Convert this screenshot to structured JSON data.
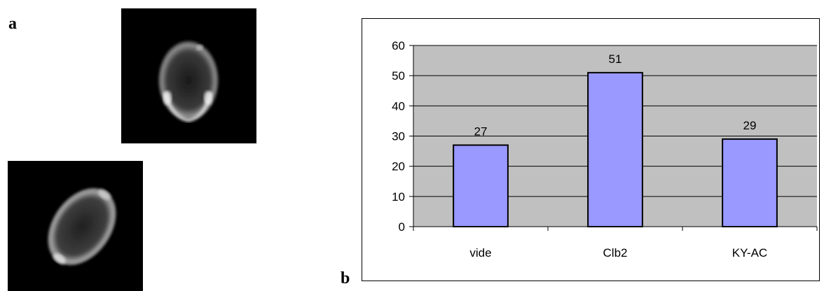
{
  "panels": {
    "a_label": "a",
    "b_label": "b"
  },
  "colors": {
    "plot_background": "#c0c0c0",
    "bar_fill": "#9999ff",
    "bar_stroke": "#000000",
    "microscopy_background": "#000000"
  },
  "chart_data": {
    "type": "bar",
    "categories": [
      "vide",
      "Clb2",
      "KY-AC"
    ],
    "values": [
      27,
      51,
      29
    ],
    "data_labels": [
      "27",
      "51",
      "29"
    ],
    "title": "",
    "xlabel": "",
    "ylabel": "",
    "ylim": [
      0,
      60
    ],
    "yticks": [
      0,
      10,
      20,
      30,
      40,
      50,
      60
    ],
    "grid": true,
    "legend": "none"
  }
}
